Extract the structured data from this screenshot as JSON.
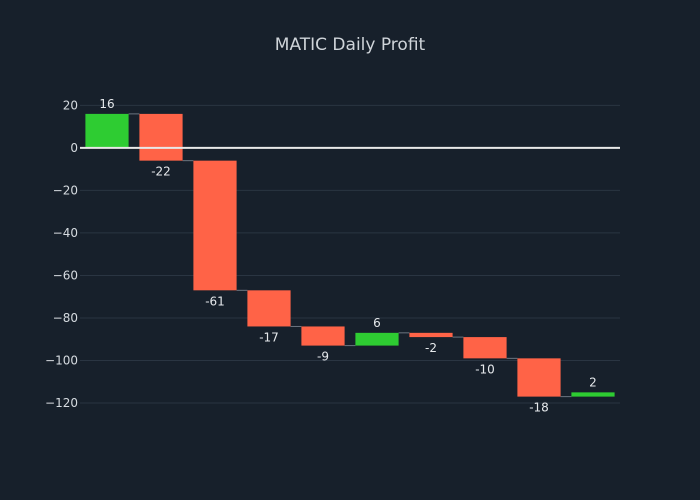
{
  "chart_data": {
    "type": "bar",
    "subtype": "waterfall",
    "title": "MATIC Daily Profit",
    "xlabel": "",
    "ylabel": "",
    "ylim": [
      -128,
      31
    ],
    "yticks": [
      20,
      0,
      -20,
      -40,
      -60,
      -80,
      -100,
      -120
    ],
    "grid": true,
    "legend": "none",
    "values": [
      16,
      -22,
      -61,
      -17,
      -9,
      6,
      -2,
      -10,
      -18,
      2
    ],
    "labels": [
      "16",
      "-22",
      "-61",
      "-17",
      "-9",
      "6",
      "-2",
      "-10",
      "-18",
      "2"
    ],
    "colors": {
      "increase": "#2ecc32",
      "decrease": "#ff6347",
      "background": "#17202b",
      "grid": "#2a3542",
      "zeroline": "#e8e8e8",
      "connector": "#6b7580"
    }
  }
}
